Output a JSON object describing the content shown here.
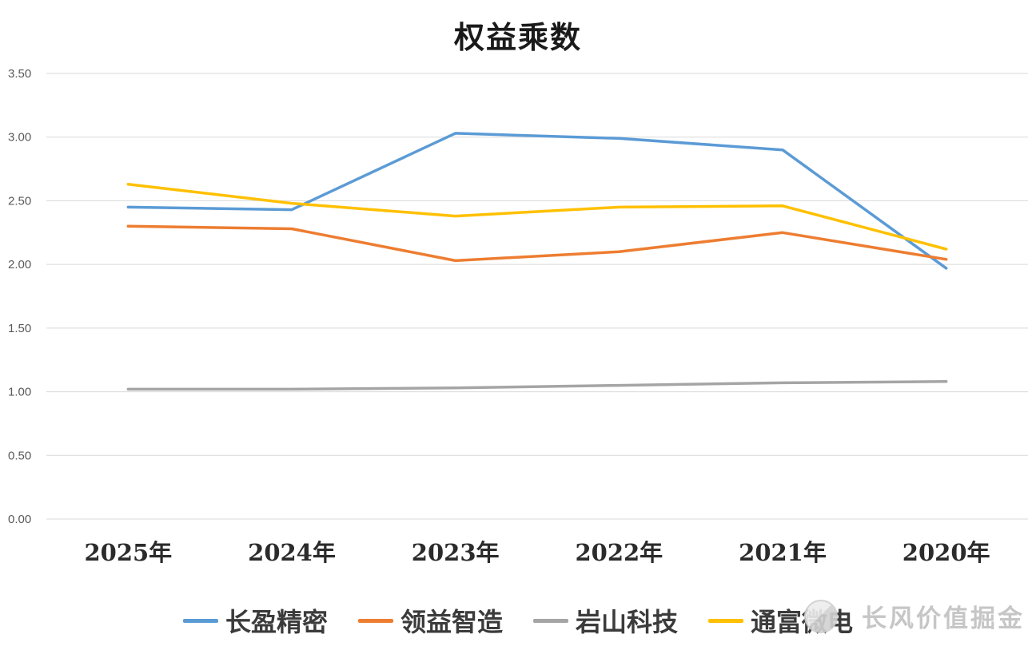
{
  "chart_data": {
    "type": "line",
    "title": "权益乘数",
    "categories": [
      "2025年",
      "2024年",
      "2023年",
      "2022年",
      "2021年",
      "2020年"
    ],
    "series": [
      {
        "name": "长盈精密",
        "color": "#5B9BD5",
        "values": [
          2.45,
          2.43,
          3.03,
          2.99,
          2.9,
          1.97
        ]
      },
      {
        "name": "领益智造",
        "color": "#ED7D31",
        "values": [
          2.3,
          2.28,
          2.03,
          2.1,
          2.25,
          2.04
        ]
      },
      {
        "name": "岩山科技",
        "color": "#A5A5A5",
        "values": [
          1.02,
          1.02,
          1.03,
          1.05,
          1.07,
          1.08
        ]
      },
      {
        "name": "通富微电",
        "color": "#FFC000",
        "values": [
          2.63,
          2.48,
          2.38,
          2.45,
          2.46,
          2.12
        ]
      }
    ],
    "ylim": [
      0,
      3.5
    ],
    "ytick_step": 0.5,
    "ytick_format_decimals": 2,
    "grid": true,
    "legend_position": "bottom",
    "gridline_color": "#D9D9D9"
  },
  "watermark": {
    "text": "长风价值掘金",
    "icon": "watermark-logo"
  }
}
